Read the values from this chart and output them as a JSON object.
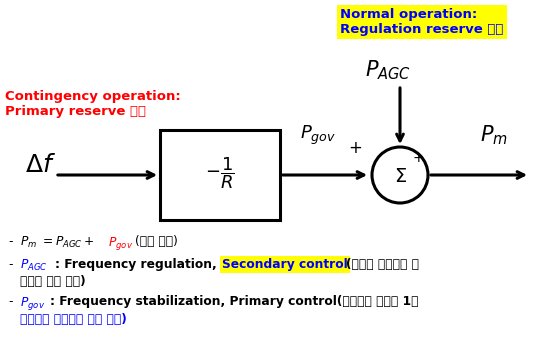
{
  "bg_color": "#ffffff",
  "normal_op_line1": "Normal operation:",
  "normal_op_line2": "Regulation reserve 사용",
  "contingency_line1": "Contingency operation:",
  "contingency_line2": "Primary reserve 사용",
  "b1_black": "= ",
  "b1_blue1": "P",
  "b1_sub1": "AGC",
  "b1_plus": " + ",
  "b1_blue2": "P",
  "b1_sub2": "gov",
  "b1_korean": "(밸브 조절)",
  "b2_korean_end": "(시스템 운영자가 지",
  "b2_wrap": "시하여 출력 조절)",
  "b3_text1": ": Frequency stabilization, Primary control(조속기가 스스로 1차",
  "b3_wrap": "예비력을 사용하여 출력 조절)"
}
